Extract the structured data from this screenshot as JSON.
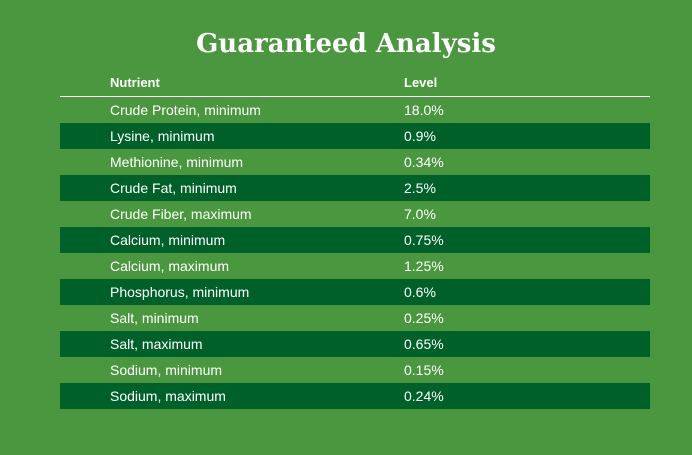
{
  "title": "Guaranteed Analysis",
  "table": {
    "header": [
      "Nutrient",
      "Level"
    ],
    "rows": [
      [
        "Crude Protein, minimum",
        "18.0%"
      ],
      [
        "Lysine, minimum",
        "0.9%"
      ],
      [
        "Methionine, minimum",
        "0.34%"
      ],
      [
        "Crude Fat, minimum",
        "2.5%"
      ],
      [
        "Crude Fiber, maximum",
        "7.0%"
      ],
      [
        "Calcium, minimum",
        "0.75%"
      ],
      [
        "Calcium, maximum",
        "1.25%"
      ],
      [
        "Phosphorus, minimum",
        "0.6%"
      ],
      [
        "Salt, minimum",
        "0.25%"
      ],
      [
        "Salt, maximum",
        "0.65%"
      ],
      [
        "Sodium, minimum",
        "0.15%"
      ],
      [
        "Sodium, maximum",
        "0.24%"
      ]
    ]
  }
}
